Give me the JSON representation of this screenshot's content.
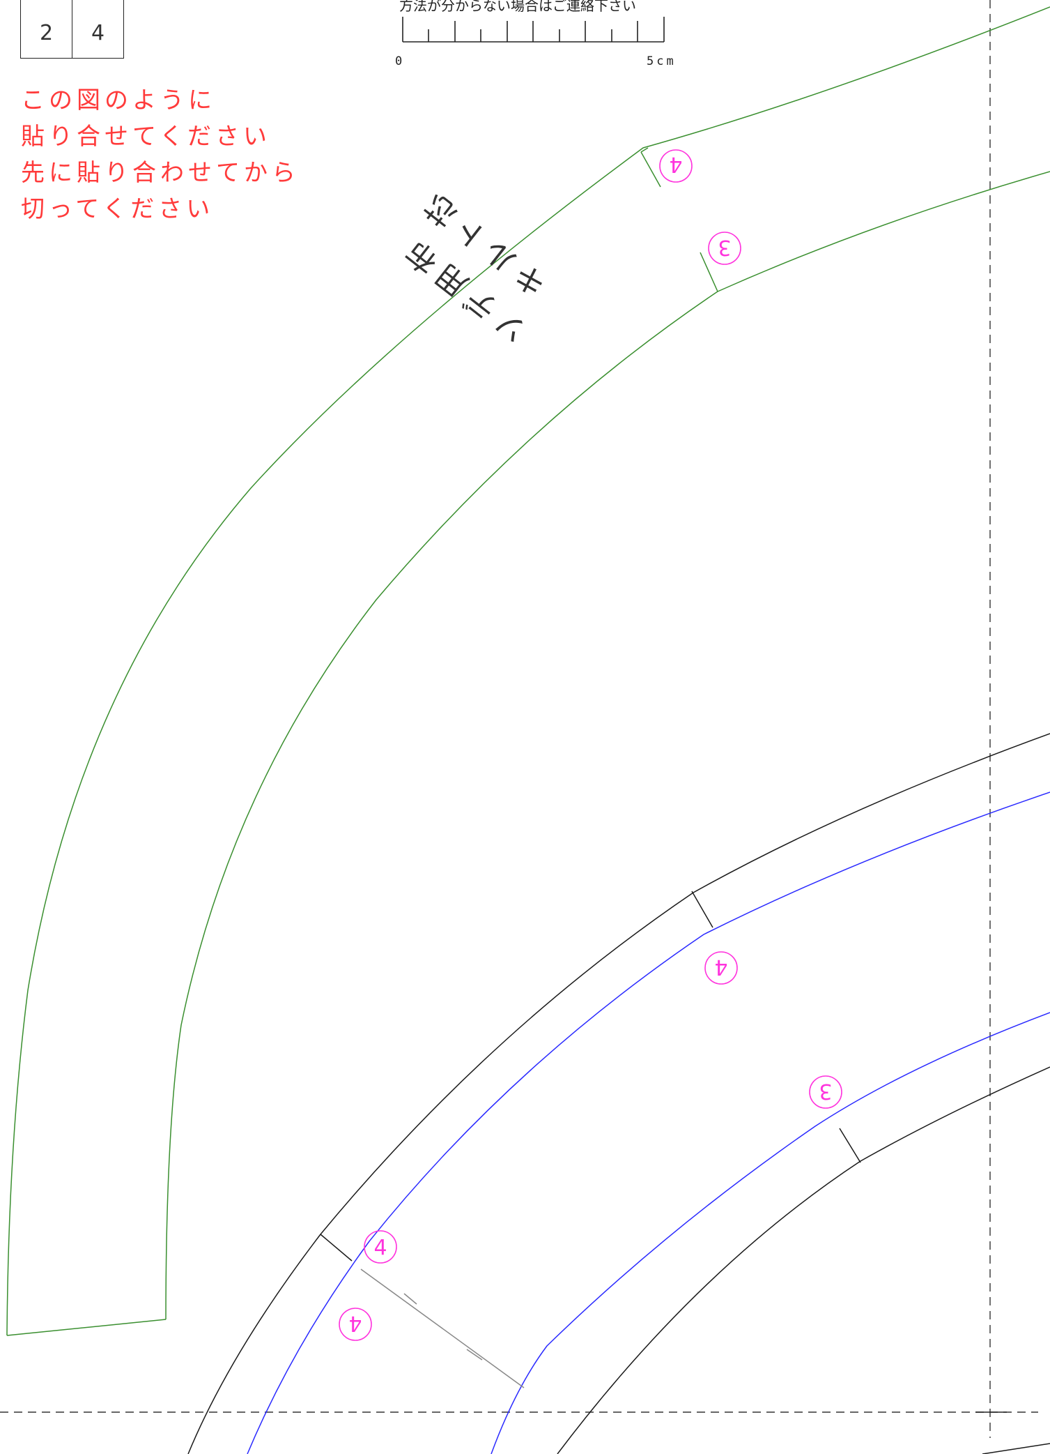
{
  "page_grid": {
    "cells": [
      "2",
      "4"
    ]
  },
  "scale": {
    "note": "方法が分からない場合はご連絡下さい",
    "start_label": "0",
    "end_label": "5cm"
  },
  "instructions": {
    "lines": [
      "この図のように",
      "貼り合せてください",
      "先に貼り合わせてから",
      "切ってください"
    ]
  },
  "pattern_label": {
    "line1": "ソデ用布",
    "line2": "キルト芯"
  },
  "match_marks": {
    "green_upper": "4",
    "green_lower": "3",
    "blue_upper": "4",
    "blue_lower": "3",
    "black_notch": "4",
    "bottom_mark": "4"
  },
  "colors": {
    "green_piece": "#3a8f2f",
    "blue_line": "#2a2aff",
    "black_line": "#1a1a1a",
    "match_mark": "#ff33dd",
    "instruction_text": "#ff3b3b",
    "dashed_guide": "#333333"
  }
}
